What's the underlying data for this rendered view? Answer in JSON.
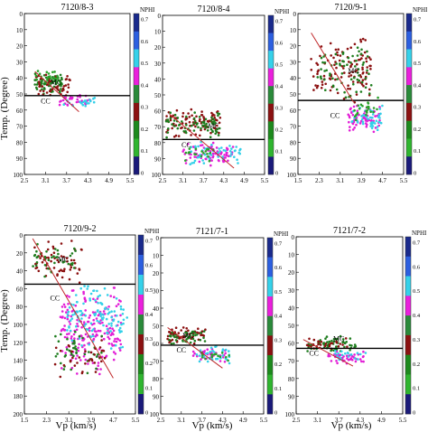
{
  "figure": {
    "y_axis_label": "Temp. (Degree)",
    "x_axis_label": "Vp (km/s)"
  },
  "chart_data": [
    {
      "type": "scatter",
      "title": "7120/8-3",
      "xlim": [
        2.5,
        5.5
      ],
      "ylim": [
        0,
        100
      ],
      "x_ticks": [
        "2.5",
        "3.1",
        "3.7",
        "4.3",
        "4.9",
        "5.5"
      ],
      "y_ticks": [
        "0",
        "10",
        "20",
        "30",
        "40",
        "50",
        "60",
        "70",
        "80",
        "90",
        "100"
      ],
      "colorbar": {
        "label": "NPHI",
        "ticks": [
          "0.7",
          "0.6",
          "0.5",
          "0.4",
          "0.3",
          "0.2",
          "0.1",
          "0"
        ]
      },
      "boundary_temp": 51,
      "trend": [
        [
          2.8,
          36
        ],
        [
          4.05,
          61
        ]
      ],
      "labels": [
        {
          "text": "MC",
          "x": 3.4,
          "y": 44
        },
        {
          "text": "CC",
          "x": 3.1,
          "y": 56
        }
      ],
      "clusters": [
        {
          "color": "#1e7d1e",
          "x": [
            2.8,
            3.6
          ],
          "y": [
            35,
            50
          ],
          "n": 70
        },
        {
          "color": "#8b1010",
          "x": [
            2.8,
            3.8
          ],
          "y": [
            38,
            52
          ],
          "n": 45
        },
        {
          "color": "#2aa02a",
          "x": [
            2.8,
            3.5
          ],
          "y": [
            35,
            45
          ],
          "n": 25
        },
        {
          "color": "#e21ed6",
          "x": [
            3.5,
            4.4
          ],
          "y": [
            50,
            58
          ],
          "n": 35
        },
        {
          "color": "#33d0e8",
          "x": [
            3.6,
            4.5
          ],
          "y": [
            52,
            58
          ],
          "n": 20
        }
      ]
    },
    {
      "type": "scatter",
      "title": "7120/8-4",
      "xlim": [
        2.5,
        5.5
      ],
      "ylim": [
        0,
        100
      ],
      "x_ticks": [
        "2.5",
        "3.1",
        "3.7",
        "4.3",
        "4.9",
        "5.5"
      ],
      "y_ticks": [
        "0",
        "10",
        "20",
        "30",
        "40",
        "50",
        "60",
        "70",
        "80",
        "90",
        "100"
      ],
      "colorbar": {
        "label": "NPHI",
        "ticks": [
          "0.7",
          "0.6",
          "0.5",
          "0.4",
          "0.3",
          "0.2",
          "0.1",
          "0"
        ]
      },
      "boundary_temp": 78,
      "trend": [
        [
          2.7,
          62
        ],
        [
          4.6,
          96
        ]
      ],
      "labels": [
        {
          "text": "MC",
          "x": 4.0,
          "y": 71
        },
        {
          "text": "CC",
          "x": 3.2,
          "y": 83
        }
      ],
      "clusters": [
        {
          "color": "#8b1010",
          "x": [
            2.6,
            4.2
          ],
          "y": [
            58,
            77
          ],
          "n": 90
        },
        {
          "color": "#1e7d1e",
          "x": [
            2.6,
            4.2
          ],
          "y": [
            60,
            78
          ],
          "n": 70
        },
        {
          "color": "#e21ed6",
          "x": [
            3.1,
            4.6
          ],
          "y": [
            79,
            95
          ],
          "n": 80
        },
        {
          "color": "#33d0e8",
          "x": [
            3.3,
            4.8
          ],
          "y": [
            79,
            95
          ],
          "n": 55
        },
        {
          "color": "#2aa02a",
          "x": [
            3.0,
            4.0
          ],
          "y": [
            82,
            92
          ],
          "n": 20
        }
      ]
    },
    {
      "type": "scatter",
      "title": "7120/9-1",
      "xlim": [
        1.5,
        5.5
      ],
      "ylim": [
        0,
        100
      ],
      "x_ticks": [
        "1.5",
        "2.3",
        "3.1",
        "3.9",
        "4.7",
        "5.5"
      ],
      "y_ticks": [
        "0",
        "10",
        "20",
        "30",
        "40",
        "50",
        "60",
        "70",
        "80",
        "90",
        "100"
      ],
      "colorbar": {
        "label": "NPHI",
        "ticks": [
          "0.7",
          "0.6",
          "0.5",
          "0.4",
          "0.3",
          "0.2",
          "0.1",
          "0"
        ]
      },
      "boundary_temp": 54,
      "trend": [
        [
          2.0,
          12
        ],
        [
          3.6,
          55
        ]
      ],
      "labels": [
        {
          "text": "MC",
          "x": 3.6,
          "y": 37
        },
        {
          "text": "CC",
          "x": 2.9,
          "y": 65
        }
      ],
      "clusters": [
        {
          "color": "#8b1010",
          "x": [
            2.0,
            4.3
          ],
          "y": [
            12,
            56
          ],
          "n": 110
        },
        {
          "color": "#1e7d1e",
          "x": [
            2.2,
            4.3
          ],
          "y": [
            20,
            55
          ],
          "n": 70
        },
        {
          "color": "#e21ed6",
          "x": [
            3.4,
            4.6
          ],
          "y": [
            55,
            75
          ],
          "n": 70
        },
        {
          "color": "#33d0e8",
          "x": [
            3.5,
            4.7
          ],
          "y": [
            55,
            73
          ],
          "n": 45
        },
        {
          "color": "#2aa02a",
          "x": [
            3.6,
            4.6
          ],
          "y": [
            52,
            68
          ],
          "n": 25
        }
      ]
    },
    {
      "type": "scatter",
      "title": "7120/9-2",
      "xlim": [
        1.5,
        5.5
      ],
      "ylim": [
        0,
        200
      ],
      "x_ticks": [
        "1.5",
        "2.3",
        "3.1",
        "3.9",
        "4.7",
        "5.5"
      ],
      "y_ticks": [
        "0",
        "20",
        "40",
        "60",
        "80",
        "100",
        "120",
        "140",
        "160",
        "180",
        "200"
      ],
      "colorbar": {
        "label": "NPHI",
        "ticks": [
          "0.7",
          "0.6",
          "0.5",
          "0.4",
          "0.3",
          "0.2",
          "0.1",
          "0"
        ]
      },
      "boundary_temp": 55,
      "trend": [
        [
          1.8,
          4
        ],
        [
          4.7,
          160
        ]
      ],
      "labels": [
        {
          "text": "MC",
          "x": 2.9,
          "y": 30
        },
        {
          "text": "CC",
          "x": 2.6,
          "y": 73
        }
      ],
      "clusters": [
        {
          "color": "#8b1010",
          "x": [
            1.8,
            3.6
          ],
          "y": [
            5,
            55
          ],
          "n": 60
        },
        {
          "color": "#1e7d1e",
          "x": [
            1.8,
            3.4
          ],
          "y": [
            5,
            50
          ],
          "n": 40
        },
        {
          "color": "#e21ed6",
          "x": [
            2.8,
            5.0
          ],
          "y": [
            55,
            160
          ],
          "n": 200
        },
        {
          "color": "#33d0e8",
          "x": [
            3.0,
            5.2
          ],
          "y": [
            50,
            130
          ],
          "n": 120
        },
        {
          "color": "#1e7d1e",
          "x": [
            2.6,
            4.4
          ],
          "y": [
            100,
            160
          ],
          "n": 45
        },
        {
          "color": "#8b1010",
          "x": [
            2.6,
            4.4
          ],
          "y": [
            110,
            160
          ],
          "n": 35
        }
      ]
    },
    {
      "type": "scatter",
      "title": "7121/7-1",
      "xlim": [
        2.5,
        5.5
      ],
      "ylim": [
        0,
        100
      ],
      "x_ticks": [
        "2.5",
        "3.1",
        "3.7",
        "4.3",
        "4.9",
        "5.5"
      ],
      "y_ticks": [
        "0",
        "10",
        "20",
        "30",
        "40",
        "50",
        "60",
        "70",
        "80",
        "90",
        "100"
      ],
      "colorbar": {
        "label": "NPHI",
        "ticks": [
          "0.7",
          "0.6",
          "0.5",
          "0.4",
          "0.3",
          "0.2",
          "0.1",
          "0"
        ]
      },
      "boundary_temp": 61,
      "trend": [
        [
          2.7,
          51
        ],
        [
          4.3,
          74
        ]
      ],
      "labels": [
        {
          "text": "MC",
          "x": 3.3,
          "y": 57
        },
        {
          "text": "CC",
          "x": 3.1,
          "y": 65
        }
      ],
      "clusters": [
        {
          "color": "#8b1010",
          "x": [
            2.7,
            3.8
          ],
          "y": [
            50,
            61
          ],
          "n": 60
        },
        {
          "color": "#1e7d1e",
          "x": [
            2.7,
            3.8
          ],
          "y": [
            50,
            61
          ],
          "n": 40
        },
        {
          "color": "#e21ed6",
          "x": [
            3.4,
            4.4
          ],
          "y": [
            61,
            72
          ],
          "n": 35
        },
        {
          "color": "#33d0e8",
          "x": [
            3.5,
            4.5
          ],
          "y": [
            61,
            72
          ],
          "n": 35
        },
        {
          "color": "#2aa02a",
          "x": [
            3.7,
            4.5
          ],
          "y": [
            64,
            70
          ],
          "n": 15
        }
      ]
    },
    {
      "type": "scatter",
      "title": "7121/7-2",
      "xlim": [
        2.5,
        5.5
      ],
      "ylim": [
        0,
        100
      ],
      "x_ticks": [
        "2.5",
        "3.1",
        "3.7",
        "4.3",
        "4.9",
        "5.5"
      ],
      "y_ticks": [
        "0",
        "10",
        "20",
        "30",
        "40",
        "50",
        "60",
        "70",
        "80",
        "90",
        "100"
      ],
      "colorbar": {
        "label": "NPHI",
        "ticks": [
          "0.7",
          "0.6",
          "0.5",
          "0.4",
          "0.3",
          "0.2",
          "0.1",
          "0"
        ]
      },
      "boundary_temp": 63,
      "trend": [
        [
          2.7,
          58
        ],
        [
          4.1,
          73
        ]
      ],
      "labels": [
        {
          "text": "MC",
          "x": 3.7,
          "y": 59
        },
        {
          "text": "CC",
          "x": 3.0,
          "y": 67
        }
      ],
      "clusters": [
        {
          "color": "#1e7d1e",
          "x": [
            2.8,
            4.2
          ],
          "y": [
            56,
            66
          ],
          "n": 60
        },
        {
          "color": "#8b1010",
          "x": [
            2.8,
            4.0
          ],
          "y": [
            57,
            64
          ],
          "n": 30
        },
        {
          "color": "#e21ed6",
          "x": [
            3.4,
            4.4
          ],
          "y": [
            64,
            72
          ],
          "n": 45
        },
        {
          "color": "#33d0e8",
          "x": [
            3.6,
            4.5
          ],
          "y": [
            64,
            70
          ],
          "n": 20
        }
      ]
    }
  ]
}
